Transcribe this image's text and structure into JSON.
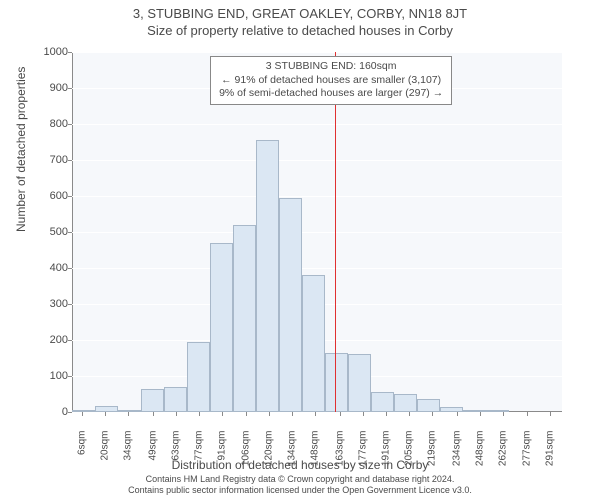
{
  "titles": {
    "main": "3, STUBBING END, GREAT OAKLEY, CORBY, NN18 8JT",
    "sub": "Size of property relative to detached houses in Corby"
  },
  "chart": {
    "type": "histogram",
    "background_color": "#f6f8fb",
    "bar_fill": "#dbe7f3",
    "bar_border": "#a8b8c9",
    "grid_color": "#ffffff",
    "ref_color": "#e03030",
    "xlim": [
      0,
      298
    ],
    "ylim": [
      0,
      1000
    ],
    "yticks": [
      0,
      100,
      200,
      300,
      400,
      500,
      600,
      700,
      800,
      900,
      1000
    ],
    "xticks": [
      6,
      20,
      34,
      49,
      63,
      77,
      91,
      106,
      120,
      134,
      148,
      163,
      177,
      191,
      205,
      219,
      234,
      248,
      262,
      277,
      291
    ],
    "xtick_suffix": "sqm",
    "ylabel": "Number of detached properties",
    "xlabel": "Distribution of detached houses by size in Corby",
    "bars": [
      {
        "x0": 0,
        "x1": 14,
        "y": 3
      },
      {
        "x0": 14,
        "x1": 28,
        "y": 18
      },
      {
        "x0": 28,
        "x1": 42,
        "y": 3
      },
      {
        "x0": 42,
        "x1": 56,
        "y": 65
      },
      {
        "x0": 56,
        "x1": 70,
        "y": 70
      },
      {
        "x0": 70,
        "x1": 84,
        "y": 195
      },
      {
        "x0": 84,
        "x1": 98,
        "y": 470
      },
      {
        "x0": 98,
        "x1": 112,
        "y": 520
      },
      {
        "x0": 112,
        "x1": 126,
        "y": 755
      },
      {
        "x0": 126,
        "x1": 140,
        "y": 595
      },
      {
        "x0": 140,
        "x1": 154,
        "y": 380
      },
      {
        "x0": 154,
        "x1": 168,
        "y": 165
      },
      {
        "x0": 168,
        "x1": 182,
        "y": 160
      },
      {
        "x0": 182,
        "x1": 196,
        "y": 55
      },
      {
        "x0": 196,
        "x1": 210,
        "y": 50
      },
      {
        "x0": 210,
        "x1": 224,
        "y": 35
      },
      {
        "x0": 224,
        "x1": 238,
        "y": 15
      },
      {
        "x0": 238,
        "x1": 252,
        "y": 2
      },
      {
        "x0": 252,
        "x1": 266,
        "y": 2
      }
    ],
    "ref_x": 160
  },
  "legend": {
    "line1": "3 STUBBING END: 160sqm",
    "line2": "← 91% of detached houses are smaller (3,107)",
    "line3": "9% of semi-detached houses are larger (297) →"
  },
  "attribution": {
    "line1": "Contains HM Land Registry data © Crown copyright and database right 2024.",
    "line2": "Contains public sector information licensed under the Open Government Licence v3.0."
  },
  "fonts": {
    "title_size": 13,
    "label_size": 12,
    "tick_size": 11,
    "legend_size": 10.5,
    "attrib_size": 9
  }
}
